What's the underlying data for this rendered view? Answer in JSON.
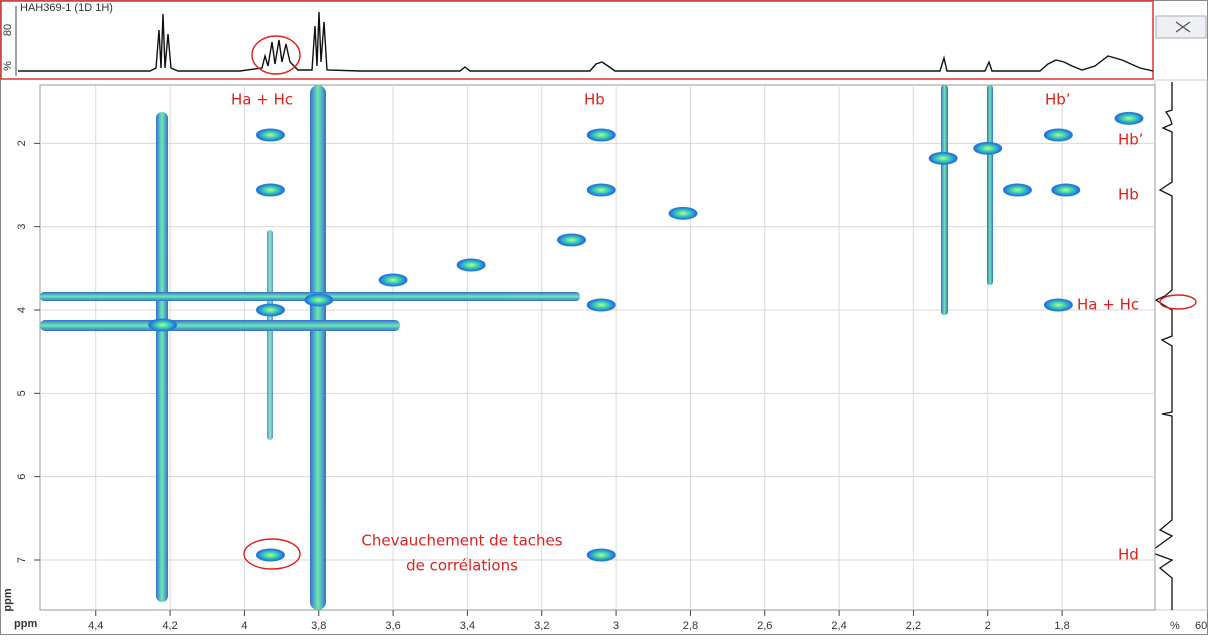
{
  "chart_data": {
    "type": "scatter",
    "title": "HAH369-1 (1D 1H)",
    "xlabel": "ppm",
    "ylabel": "ppm",
    "x": [
      4.22,
      3.8,
      3.93,
      3.6,
      3.39,
      3.12,
      2.82,
      3.04,
      3.04,
      3.04,
      3.04,
      3.93,
      3.93,
      3.93,
      2.12,
      2.0,
      1.81,
      1.62,
      1.79,
      1.92,
      1.81
    ],
    "values": [
      4.18,
      3.88,
      4.0,
      3.64,
      3.46,
      3.16,
      2.84,
      2.56,
      1.9,
      3.94,
      6.94,
      6.94,
      1.9,
      2.56,
      2.18,
      2.06,
      1.9,
      1.7,
      2.56,
      2.56,
      3.94
    ],
    "color": "#2a7fd4",
    "xlim": [
      4.55,
      1.55
    ],
    "ylim": [
      1.3,
      7.6
    ],
    "xticks": [
      {
        "value": 4.4,
        "label": "4,4"
      },
      {
        "value": 4.2,
        "label": "4,2"
      },
      4,
      {
        "value": 3.8,
        "label": "3,8"
      },
      {
        "value": 3.6,
        "label": "3,6"
      },
      {
        "value": 3.4,
        "label": "3,4"
      },
      {
        "value": 3.2,
        "label": "3,2"
      },
      3,
      {
        "value": 2.8,
        "label": "2,8"
      },
      {
        "value": 2.6,
        "label": "2,6"
      },
      {
        "value": 2.4,
        "label": "2,4"
      },
      {
        "value": 2.2,
        "label": "2,2"
      },
      2,
      {
        "value": 1.8,
        "label": "1,8"
      }
    ],
    "yticks": [
      2,
      3,
      4,
      5,
      6,
      7
    ],
    "grid": true,
    "top_trace": {
      "ytick": 80,
      "ylabel": "%"
    },
    "side_trace": {
      "xtick": 60,
      "xlabel": "%"
    },
    "annotations": [
      "Ha + Hc",
      "Hb",
      "Hb’",
      "Hb’",
      "Hb",
      "Ha + Hc",
      "Hd",
      "Chevauchement de taches",
      "de corrélations"
    ]
  }
}
